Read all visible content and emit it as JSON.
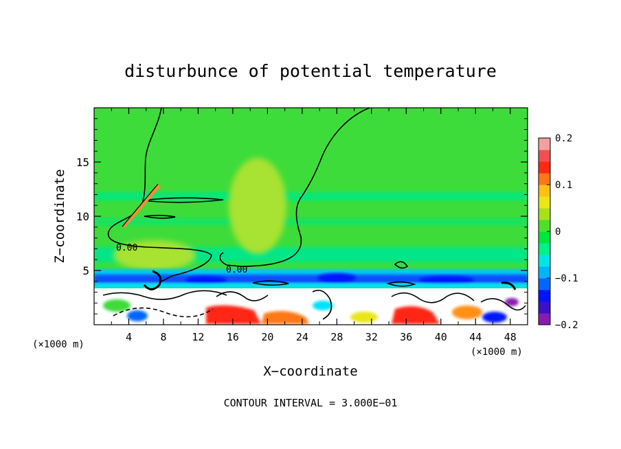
{
  "chart_data": {
    "type": "heatmap",
    "title": "disturbunce of potential temperature",
    "xlabel": "X−coordinate",
    "ylabel": "Z−coordinate",
    "x_unit": "(×1000 m)",
    "x_unit_right": "(×1000 m)",
    "xlim": [
      0,
      50
    ],
    "ylim": [
      0,
      20
    ],
    "x_ticks": [
      "4",
      "8",
      "12",
      "16",
      "20",
      "24",
      "28",
      "32",
      "36",
      "40",
      "44",
      "48"
    ],
    "x_tick_values": [
      4,
      8,
      12,
      16,
      20,
      24,
      28,
      32,
      36,
      40,
      44,
      48
    ],
    "y_ticks": [
      "5",
      "10",
      "15"
    ],
    "y_tick_values": [
      5,
      10,
      15
    ],
    "colorbar": {
      "range": [
        -0.2,
        0.2
      ],
      "tick_labels": [
        "0.2",
        "0.1",
        "0",
        "−0.1",
        "−0.2"
      ],
      "tick_values": [
        0.2,
        0.1,
        0,
        -0.1,
        -0.2
      ],
      "colors": [
        "#8a1cb0",
        "#3b10c8",
        "#0014ff",
        "#0066ff",
        "#00b4ff",
        "#00e6e6",
        "#00f08a",
        "#00e63c",
        "#4ee028",
        "#a8e01c",
        "#e8e614",
        "#ffc014",
        "#ff7814",
        "#ff2814",
        "#f05050",
        "#f4a0a0"
      ]
    },
    "contour_labels": [
      "0.00",
      "0.00"
    ],
    "contour_label_positions": [
      [
        3.0,
        7.1
      ],
      [
        16.4,
        5.0
      ]
    ],
    "annotation": "CONTOUR INTERVAL = 3.000E−01"
  }
}
